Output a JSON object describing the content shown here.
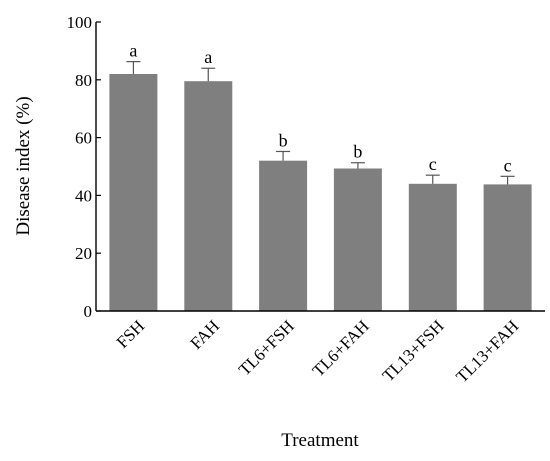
{
  "chart_data": {
    "type": "bar",
    "title": "",
    "xlabel": "Treatment",
    "ylabel": "Disease index (%)",
    "ylim": [
      0,
      100
    ],
    "yticks": [
      0,
      20,
      40,
      60,
      80,
      100
    ],
    "categories": [
      "FSH",
      "FAH",
      "TL6+FSH",
      "TL6+FAH",
      "TL13+FSH",
      "TL13+FAH"
    ],
    "values": [
      82,
      79.5,
      52,
      49.3,
      44,
      43.8
    ],
    "errors": [
      4.3,
      4.5,
      3.2,
      2,
      3,
      2.8
    ],
    "significance": [
      "a",
      "a",
      "b",
      "b",
      "c",
      "c"
    ],
    "bar_color": "#7f7f7f",
    "grid": false,
    "legend": "none"
  }
}
